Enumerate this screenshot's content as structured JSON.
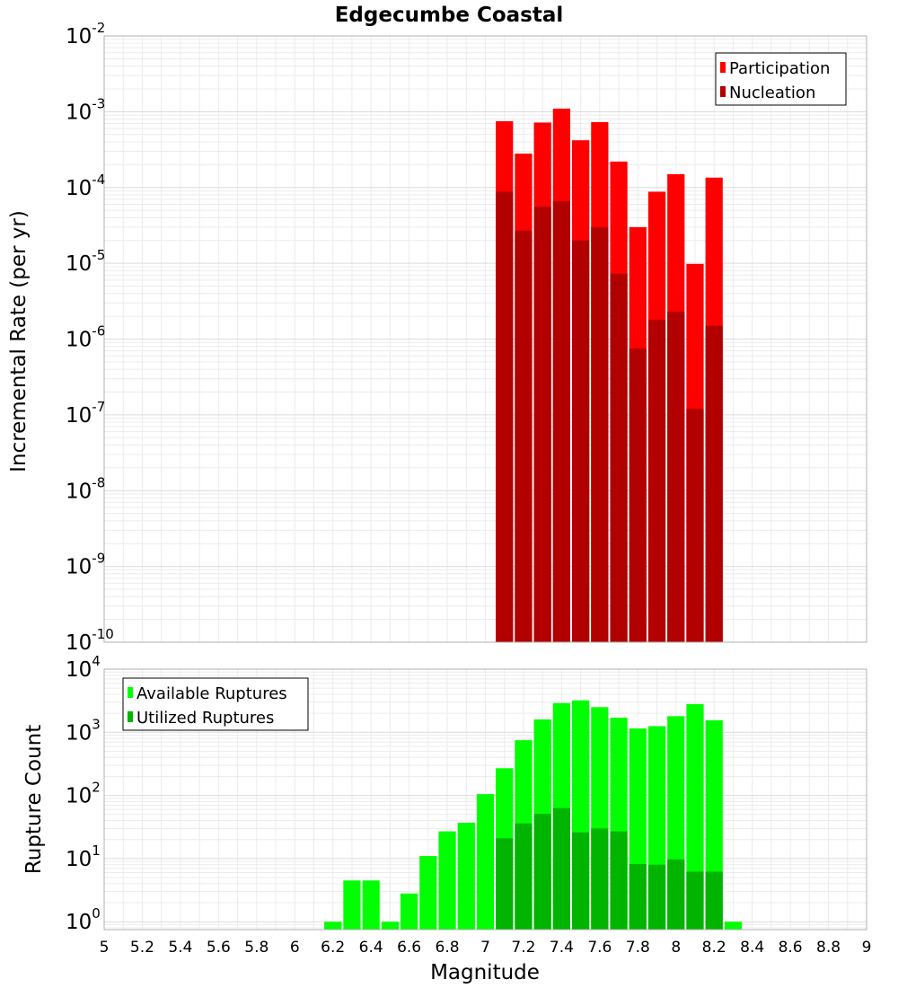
{
  "chart_data": [
    {
      "type": "bar",
      "title": "Edgecumbe Coastal",
      "ylabel": "Incremental Rate (per yr)",
      "xlabel": "",
      "yscale": "log",
      "ylim": [
        1e-10,
        0.01
      ],
      "xlim": [
        5,
        9
      ],
      "yticks": [
        "10",
        "10",
        "10",
        "10",
        "10",
        "10",
        "10",
        "10",
        "10"
      ],
      "ytick_exponents": [
        "-10",
        "-9",
        "-8",
        "-7",
        "-6",
        "-5",
        "-4",
        "-3",
        "-2"
      ],
      "grid": true,
      "legend_position": "top-right",
      "bin_width": 0.1,
      "x": [
        7.1,
        7.2,
        7.3,
        7.4,
        7.5,
        7.6,
        7.7,
        7.8,
        7.9,
        8.0,
        8.1,
        8.2
      ],
      "series": [
        {
          "name": "Participation",
          "color": "#ff0000",
          "values": [
            0.00075,
            0.00028,
            0.00072,
            0.0011,
            0.00042,
            0.00073,
            0.00022,
            3e-05,
            8.8e-05,
            0.00015,
            9.8e-06,
            0.000135
          ]
        },
        {
          "name": "Nucleation",
          "color": "#b20000",
          "values": [
            8.8e-05,
            2.7e-05,
            5.6e-05,
            6.6e-05,
            2e-05,
            3e-05,
            7.3e-06,
            7.5e-07,
            1.8e-06,
            2.3e-06,
            1.2e-07,
            1.5e-06
          ]
        }
      ]
    },
    {
      "type": "bar",
      "title": "",
      "ylabel": "Rupture Count",
      "xlabel": "Magnitude",
      "yscale": "log",
      "ylim": [
        0.75,
        10000
      ],
      "xlim": [
        5,
        9
      ],
      "yticks": [
        "10",
        "10",
        "10",
        "10",
        "10"
      ],
      "ytick_exponents": [
        "0",
        "1",
        "2",
        "3",
        "4"
      ],
      "xticks": [
        "5",
        "5.2",
        "5.4",
        "5.6",
        "5.8",
        "6",
        "6.2",
        "6.4",
        "6.6",
        "6.8",
        "7",
        "7.2",
        "7.4",
        "7.6",
        "7.8",
        "8",
        "8.2",
        "8.4",
        "8.6",
        "8.8",
        "9"
      ],
      "grid": true,
      "legend_position": "top-left",
      "bin_width": 0.1,
      "series": [
        {
          "name": "Available Ruptures",
          "color": "#00ff00",
          "x": [
            6.2,
            6.3,
            6.4,
            6.5,
            6.6,
            6.7,
            6.8,
            6.9,
            7.0,
            7.1,
            7.2,
            7.3,
            7.4,
            7.5,
            7.6,
            7.7,
            7.8,
            7.9,
            8.0,
            8.1,
            8.2,
            8.3
          ],
          "values": [
            1,
            4.5,
            4.5,
            1,
            2.8,
            11,
            27,
            37,
            105,
            270,
            750,
            1600,
            2900,
            3200,
            2500,
            1700,
            1150,
            1250,
            1800,
            2800,
            1550,
            1
          ]
        },
        {
          "name": "Utilized Ruptures",
          "color": "#00b400",
          "x": [
            7.1,
            7.2,
            7.3,
            7.4,
            7.5,
            7.6,
            7.7,
            7.8,
            7.9,
            8.0,
            8.1,
            8.2
          ],
          "values": [
            21,
            36,
            51,
            63,
            26,
            30,
            27,
            8.2,
            8.0,
            9.7,
            6.2,
            6.2
          ]
        }
      ]
    }
  ]
}
